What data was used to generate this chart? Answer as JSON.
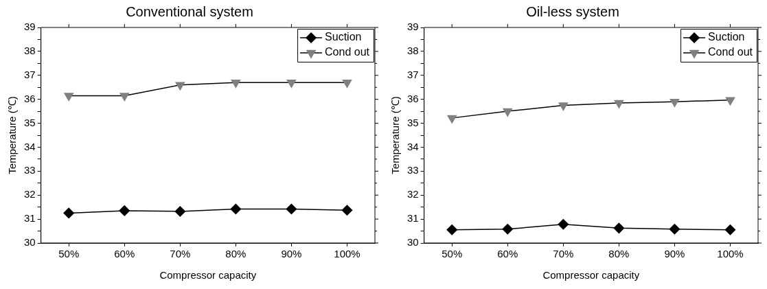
{
  "chart_data": [
    {
      "type": "line",
      "title": "Conventional system",
      "xlabel": "Compressor capacity",
      "ylabel": "Temperature (℃)",
      "categories": [
        "50%",
        "60%",
        "70%",
        "80%",
        "90%",
        "100%"
      ],
      "series": [
        {
          "name": "Suction",
          "color": "#000000",
          "marker": "diamond",
          "values": [
            31.25,
            31.35,
            31.32,
            31.42,
            31.42,
            31.37
          ]
        },
        {
          "name": "Cond out",
          "color": "#808080",
          "marker": "triangle",
          "values": [
            36.15,
            36.15,
            36.6,
            36.7,
            36.7,
            36.7
          ]
        }
      ],
      "ylim": [
        30,
        39
      ],
      "yticks": [
        30,
        {
          "value": 30.5,
          "label": null
        },
        31,
        {
          "value": 31.5,
          "label": null
        },
        32,
        {
          "value": 32.5,
          "label": null
        },
        33,
        {
          "value": 33.5,
          "label": null
        },
        34,
        {
          "value": 34.5,
          "label": null
        },
        35,
        {
          "value": 35.5,
          "label": null
        },
        36,
        {
          "value": 36.5,
          "label": null
        },
        37,
        {
          "value": 37.5,
          "label": null
        },
        38,
        {
          "value": 38.5,
          "label": null
        },
        39
      ],
      "grid": false,
      "legend": "top right"
    },
    {
      "type": "line",
      "title": "Oil-less system",
      "xlabel": "Compressor capacity",
      "ylabel": "Temperature (℃)",
      "categories": [
        "50%",
        "60%",
        "70%",
        "80%",
        "90%",
        "100%"
      ],
      "series": [
        {
          "name": "Suction",
          "color": "#000000",
          "marker": "diamond",
          "values": [
            30.55,
            30.58,
            30.78,
            30.62,
            30.58,
            30.55
          ]
        },
        {
          "name": "Cond out",
          "color": "#808080",
          "marker": "triangle",
          "values": [
            35.22,
            35.5,
            35.75,
            35.85,
            35.9,
            35.97
          ]
        }
      ],
      "ylim": [
        30,
        39
      ],
      "yticks": [
        30,
        {
          "value": 30.5,
          "label": null
        },
        31,
        {
          "value": 31.5,
          "label": null
        },
        32,
        {
          "value": 32.5,
          "label": null
        },
        33,
        {
          "value": 33.5,
          "label": null
        },
        34,
        {
          "value": 34.5,
          "label": null
        },
        35,
        {
          "value": 35.5,
          "label": null
        },
        36,
        {
          "value": 36.5,
          "label": null
        },
        37,
        {
          "value": 37.5,
          "label": null
        },
        38,
        {
          "value": 38.5,
          "label": null
        },
        39
      ],
      "grid": false,
      "legend": "top right"
    }
  ]
}
